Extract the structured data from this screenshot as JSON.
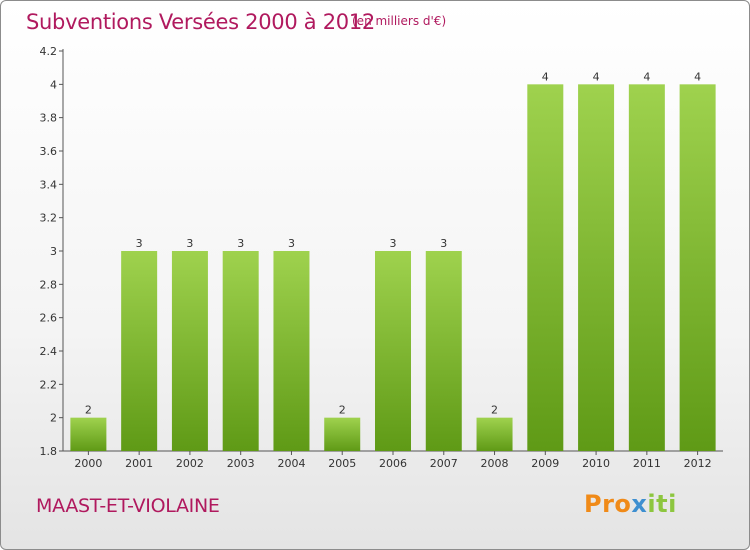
{
  "header": {
    "title": "Subventions Versées 2000 à 2012",
    "subtitle": "(en milliers d'€)"
  },
  "footer": {
    "commune": "MAAST-ET-VIOLAINE",
    "logo_parts": [
      "Pro",
      "x",
      "iti"
    ]
  },
  "colors": {
    "bar_light": "#9fd24e",
    "bar_dark": "#5f9a16",
    "title": "#b0195e",
    "logo_orange": "#f08a18",
    "logo_blue": "#3e8fd0",
    "logo_green": "#8dc63f"
  },
  "chart_data": {
    "type": "bar",
    "title": "Subventions Versées 2000 à 2012",
    "subtitle": "(en milliers d'€)",
    "categories": [
      "2000",
      "2001",
      "2002",
      "2003",
      "2004",
      "2005",
      "2006",
      "2007",
      "2008",
      "2009",
      "2010",
      "2011",
      "2012"
    ],
    "values": [
      2,
      3,
      3,
      3,
      3,
      2,
      3,
      3,
      2,
      4,
      4,
      4,
      4
    ],
    "data_labels": [
      "2",
      "3",
      "3",
      "3",
      "3",
      "2",
      "3",
      "3",
      "2",
      "4",
      "4",
      "4",
      "4"
    ],
    "ylim": [
      1.8,
      4.2
    ],
    "yticks": [
      1.8,
      2,
      2.2,
      2.4,
      2.6,
      2.8,
      3,
      3.2,
      3.4,
      3.6,
      3.8,
      4,
      4.2
    ],
    "ytick_labels": [
      "1.8",
      "2",
      "2.2",
      "2.4",
      "2.6",
      "2.8",
      "3",
      "3.2",
      "3.4",
      "3.6",
      "3.8",
      "4",
      "4.2"
    ],
    "grid": false,
    "legend": "none"
  }
}
